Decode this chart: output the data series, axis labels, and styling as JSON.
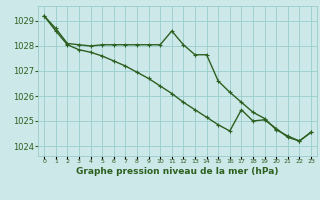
{
  "title": "Graphe pression niveau de la mer (hPa)",
  "background_color": "#cce8e8",
  "grid_color": "#99cccc",
  "line_color": "#2d6020",
  "x_labels": [
    "0",
    "1",
    "2",
    "3",
    "4",
    "5",
    "6",
    "7",
    "8",
    "9",
    "10",
    "11",
    "12",
    "13",
    "14",
    "15",
    "16",
    "17",
    "18",
    "19",
    "20",
    "21",
    "22",
    "23"
  ],
  "ylim": [
    1023.6,
    1029.6
  ],
  "yticks": [
    1024,
    1025,
    1026,
    1027,
    1028,
    1029
  ],
  "line1": [
    1029.2,
    1028.7,
    1028.1,
    1028.05,
    1028.0,
    1028.05,
    1028.05,
    1028.05,
    1028.05,
    1028.05,
    1028.05,
    1028.6,
    1028.05,
    1027.65,
    1027.65,
    1026.6,
    1026.15,
    1025.75,
    1025.35,
    1025.1,
    1024.65,
    1024.4,
    1024.2,
    1024.55
  ],
  "line2": [
    1029.2,
    1028.6,
    1028.05,
    1027.85,
    1027.75,
    1027.6,
    1027.4,
    1027.2,
    1026.95,
    1026.7,
    1026.4,
    1026.1,
    1025.75,
    1025.45,
    1025.15,
    1024.85,
    1024.6,
    1025.45,
    1025.0,
    1025.05,
    1024.7,
    1024.35,
    1024.2,
    1024.55
  ],
  "marker": "+",
  "markersize": 3,
  "linewidth": 1.0
}
